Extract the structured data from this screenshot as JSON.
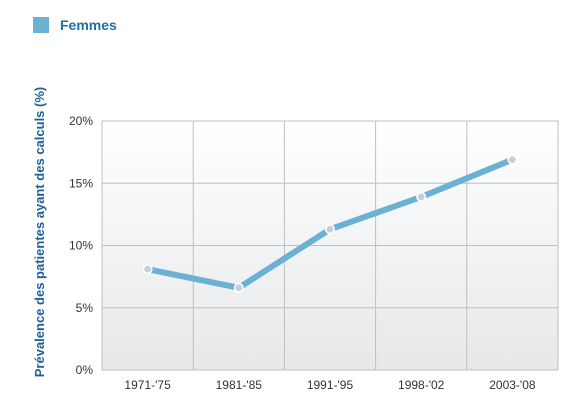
{
  "chart_data": {
    "type": "line",
    "categories": [
      "1971-'75",
      "1981-'85",
      "1991-'95",
      "1998-'02",
      "2003-'08"
    ],
    "series": [
      {
        "name": "Femmes",
        "values": [
          8.1,
          6.6,
          11.3,
          13.9,
          16.9
        ]
      }
    ],
    "ylabel": "Prévalence des patientes ayant des calculs (%)",
    "xlabel": "",
    "ylim": [
      0,
      20
    ],
    "yticks": [
      0,
      5,
      10,
      15,
      20
    ],
    "ytick_labels": [
      "0%",
      "5%",
      "10%",
      "15%",
      "20%"
    ],
    "grid": true,
    "legend": "top-left",
    "colors": {
      "series": "#6ab1d3",
      "marker_fill": "#c9cfd4",
      "legend_text": "#1f6fa8",
      "axis_label": "#1d5f99"
    }
  }
}
